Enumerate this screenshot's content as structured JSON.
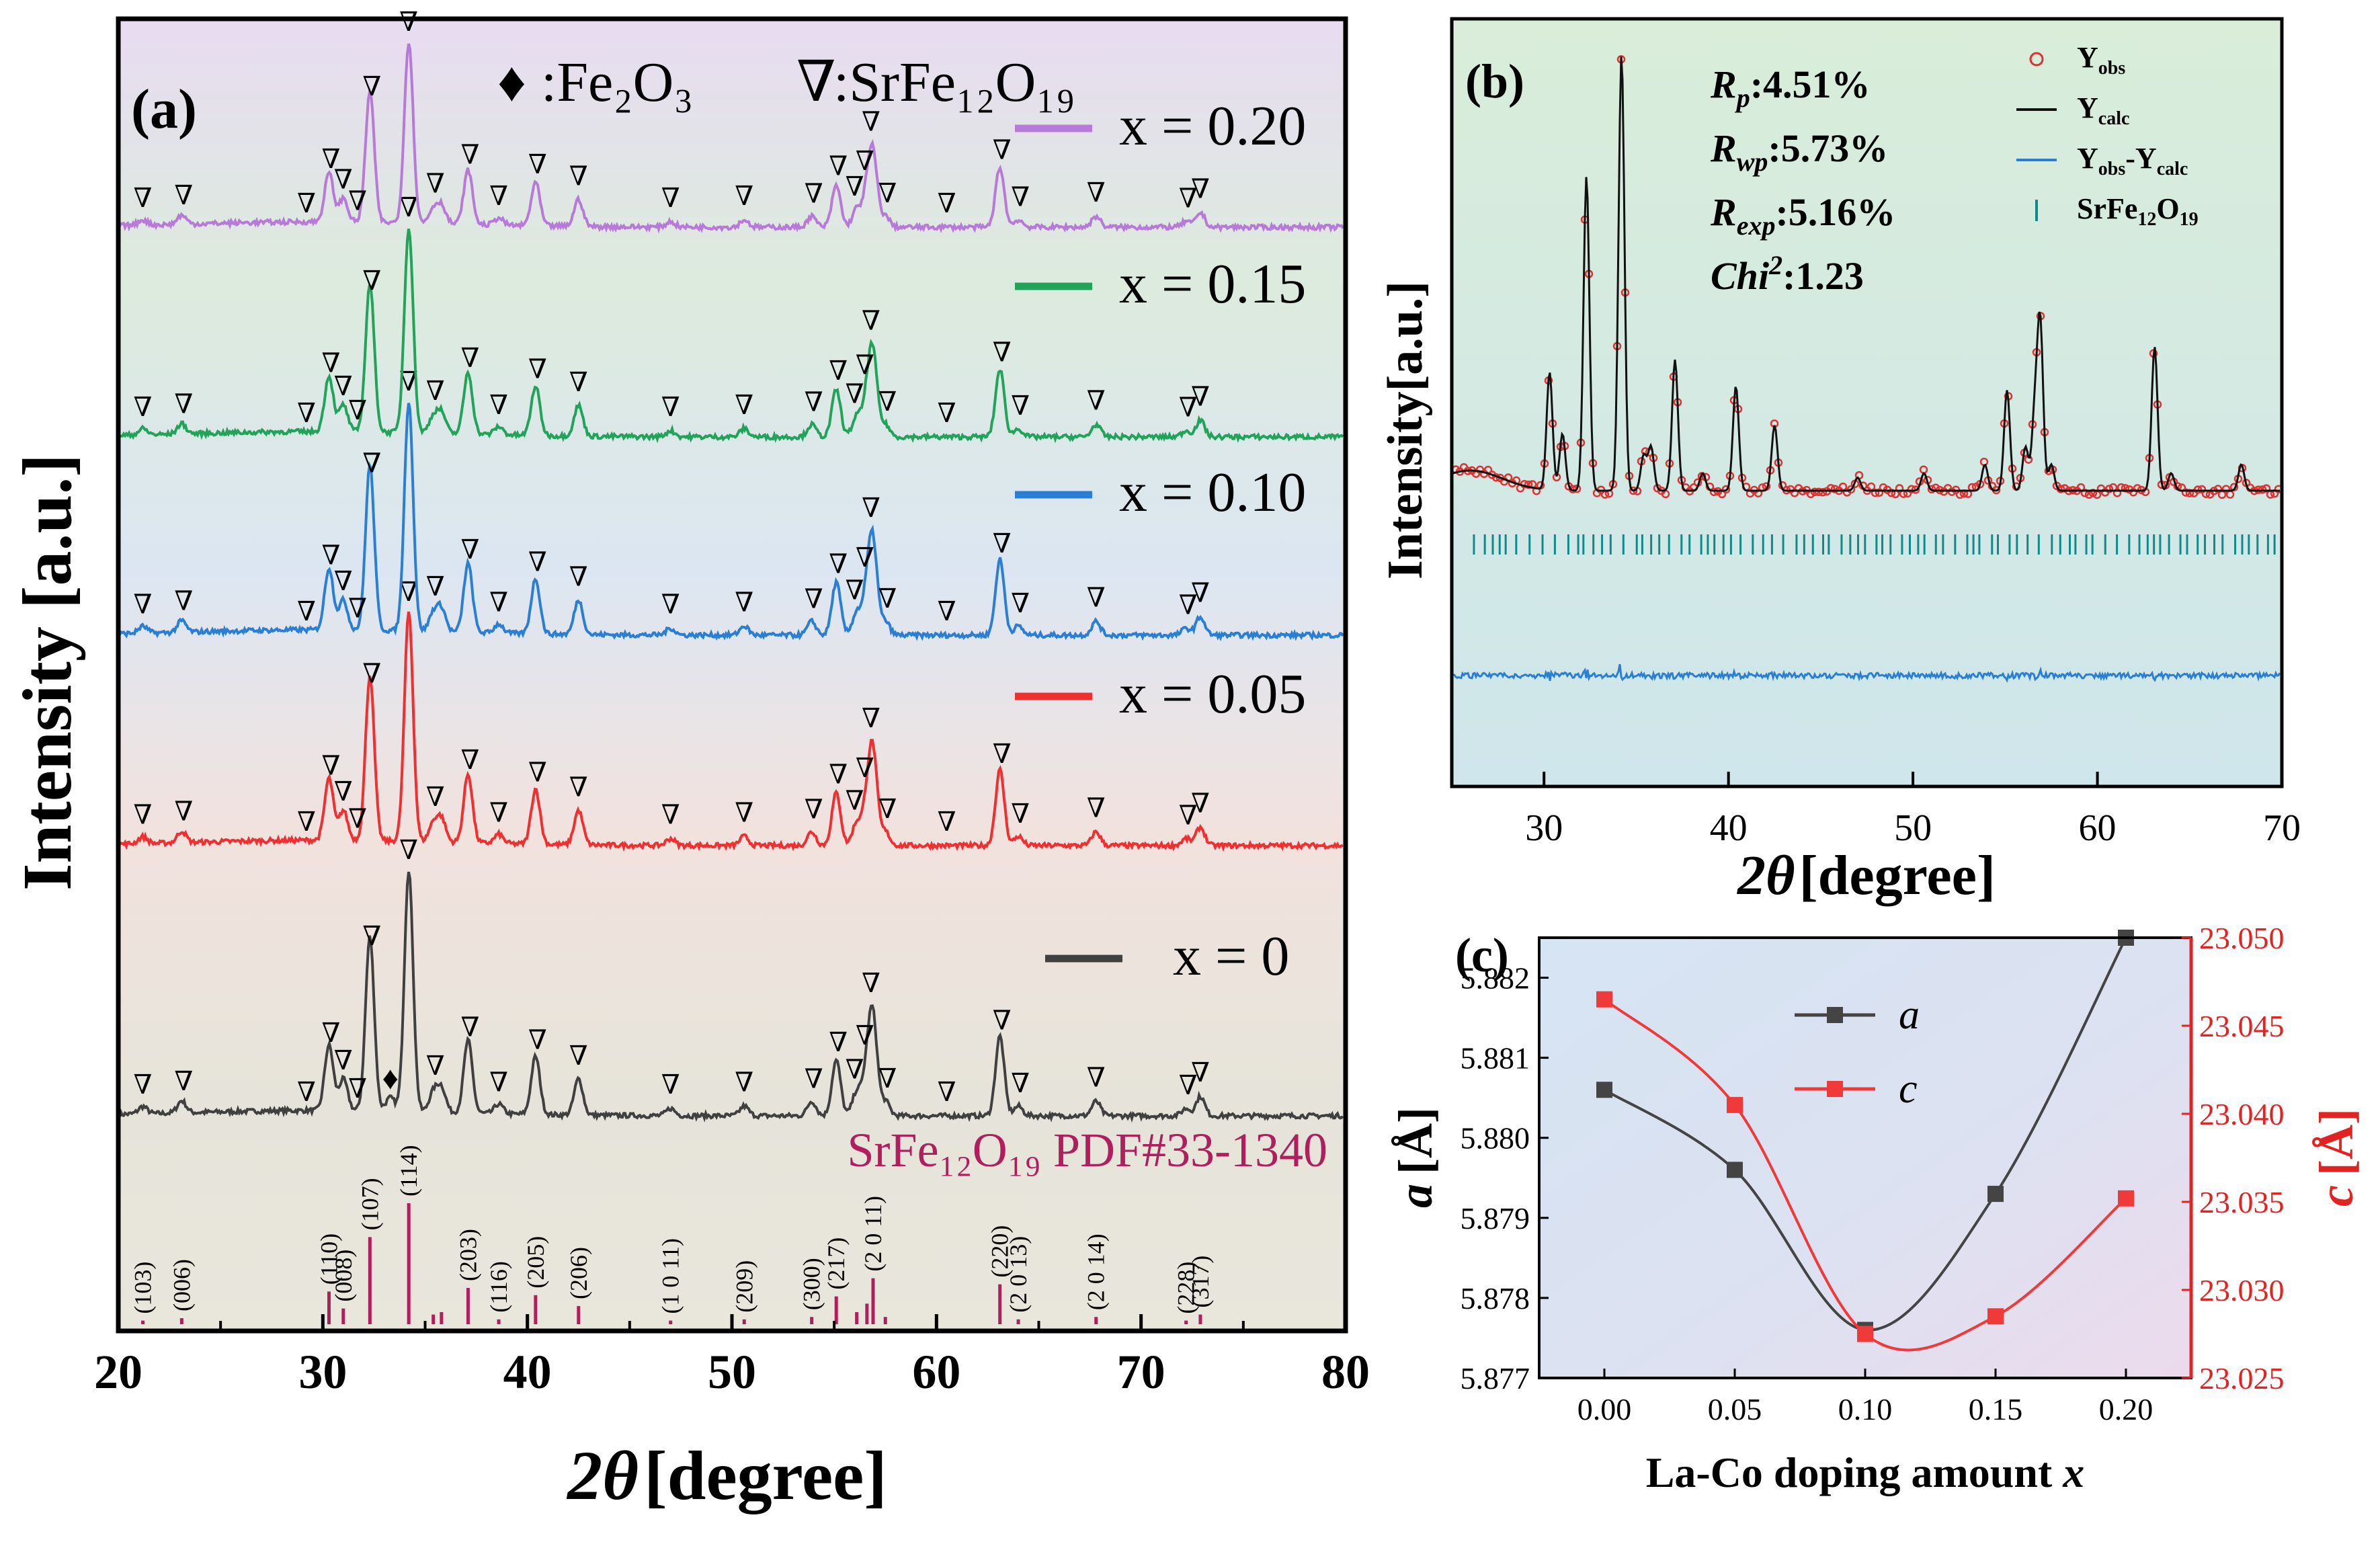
{
  "chart_data": [
    {
      "panel": "(a)",
      "type": "line",
      "xlabel_theta": "2θ",
      "xlabel_rest": "[degree]",
      "ylabel": "Intensity [a.u.]",
      "xlim": [
        20,
        80
      ],
      "x_ticks": [
        "20",
        "30",
        "40",
        "50",
        "60",
        "70",
        "80"
      ],
      "legend_phases": {
        "fe2o3_symbol": "♦",
        "fe2o3_label": ":Fe₂O₃",
        "srfe_symbol": "∇",
        "srfe_label": ":SrFe₁₂O₁₉"
      },
      "peak_positions": [
        21.2,
        23.2,
        29.2,
        30.4,
        31.0,
        31.7,
        32.4,
        34.2,
        35.5,
        37.2,
        38.6,
        40.5,
        42.5,
        47.0,
        50.6,
        54.0,
        55.2,
        56.0,
        56.5,
        56.8,
        57.6,
        60.5,
        63.2,
        64.1,
        67.8,
        72.3,
        72.9
      ],
      "series": [
        {
          "name": "x = 0",
          "color": "#404040",
          "fe2o3_peak": 33.3
        },
        {
          "name": "x = 0.05",
          "color": "#f03030"
        },
        {
          "name": "x = 0.10",
          "color": "#2a7fd4"
        },
        {
          "name": "x = 0.15",
          "color": "#21a35a"
        },
        {
          "name": "x = 0.20",
          "color": "#b77ad8"
        }
      ],
      "reference": {
        "label": "SrFe₁₂O₁₉ PDF#33-1340",
        "color": "#b01e5e",
        "lines": [
          {
            "x": 21.2,
            "h": 0.03,
            "hkl": "(103)"
          },
          {
            "x": 23.1,
            "h": 0.05,
            "hkl": "(006)"
          },
          {
            "x": 30.3,
            "h": 0.27,
            "hkl": "(110)"
          },
          {
            "x": 31.0,
            "h": 0.13,
            "hkl": "(008)"
          },
          {
            "x": 32.3,
            "h": 0.72,
            "hkl": "(107)"
          },
          {
            "x": 34.2,
            "h": 1.0,
            "hkl": "(114)"
          },
          {
            "x": 35.4,
            "h": 0.08,
            "hkl": ""
          },
          {
            "x": 35.8,
            "h": 0.1,
            "hkl": ""
          },
          {
            "x": 37.1,
            "h": 0.3,
            "hkl": "(203)"
          },
          {
            "x": 38.6,
            "h": 0.04,
            "hkl": "(116)"
          },
          {
            "x": 40.4,
            "h": 0.24,
            "hkl": "(205)"
          },
          {
            "x": 42.5,
            "h": 0.15,
            "hkl": "(206)"
          },
          {
            "x": 47.0,
            "h": 0.03,
            "hkl": "(1 0 11)"
          },
          {
            "x": 50.6,
            "h": 0.04,
            "hkl": "(209)"
          },
          {
            "x": 53.9,
            "h": 0.06,
            "hkl": "(300)"
          },
          {
            "x": 55.1,
            "h": 0.23,
            "hkl": "(217)"
          },
          {
            "x": 56.1,
            "h": 0.1,
            "hkl": ""
          },
          {
            "x": 56.6,
            "h": 0.17,
            "hkl": ""
          },
          {
            "x": 56.9,
            "h": 0.38,
            "hkl": "(2 0 11)"
          },
          {
            "x": 57.5,
            "h": 0.06,
            "hkl": ""
          },
          {
            "x": 63.1,
            "h": 0.33,
            "hkl": "(220)"
          },
          {
            "x": 64.0,
            "h": 0.04,
            "hkl": "(2 0 13)"
          },
          {
            "x": 67.8,
            "h": 0.06,
            "hkl": "(2 0 14)"
          },
          {
            "x": 72.2,
            "h": 0.03,
            "hkl": "(228)"
          },
          {
            "x": 72.9,
            "h": 0.08,
            "hkl": "(317)"
          }
        ]
      }
    },
    {
      "panel": "(b)",
      "type": "line",
      "xlabel_theta": "2θ",
      "xlabel_rest": "[degree]",
      "ylabel": "Intensity[a.u.]",
      "xlim": [
        25,
        70
      ],
      "x_ticks": [
        "30",
        "40",
        "50",
        "60",
        "70"
      ],
      "stats": [
        {
          "sym": "R",
          "sub": "p",
          "sup": "",
          "value": ":4.51%"
        },
        {
          "sym": "R",
          "sub": "wp",
          "sup": "",
          "value": ":5.73%"
        },
        {
          "sym": "R",
          "sub": "exp",
          "sup": "",
          "value": ":5.16%"
        },
        {
          "sym": "Chi",
          "sub": "",
          "sup": "2",
          "value": ":1.23"
        }
      ],
      "legend": [
        {
          "main": "Y",
          "sub": "obs",
          "mid": "",
          "sub2": "",
          "color": "#e03030",
          "marker": "circle"
        },
        {
          "main": "Y",
          "sub": "calc",
          "mid": "",
          "sub2": "",
          "color": "#111111",
          "marker": "line"
        },
        {
          "main": "Y",
          "sub": "obs",
          "mid": "-Y",
          "sub2": "calc",
          "color": "#2a7fd4",
          "marker": "line"
        },
        {
          "main": "SrFe",
          "sub": "12",
          "mid": "O",
          "sub2": "19",
          "color": "#0e8a8a",
          "marker": "tick"
        }
      ]
    },
    {
      "panel": "(c)",
      "type": "line",
      "xlabel": "La-Co doping amount",
      "xlabel_var": "x",
      "categories": [
        0.0,
        0.05,
        0.1,
        0.15,
        0.2
      ],
      "x_ticks": [
        "0.00",
        "0.05",
        "0.10",
        "0.15",
        "0.20"
      ],
      "left_axis": {
        "var": "a",
        "unit": "[Å]",
        "ylim": [
          5.877,
          5.8825
        ],
        "ticks": [
          "5.877",
          "5.878",
          "5.879",
          "5.880",
          "5.881",
          "5.882"
        ],
        "color": "#111111"
      },
      "right_axis": {
        "var": "c",
        "unit": "[Å]",
        "ylim": [
          23.025,
          23.05
        ],
        "ticks": [
          "23.025",
          "23.030",
          "23.035",
          "23.040",
          "23.045",
          "23.050"
        ],
        "color": "#e32222"
      },
      "series": [
        {
          "name": "a",
          "axis": "left",
          "color": "#444444",
          "values": [
            5.8806,
            5.8796,
            5.8776,
            5.8793,
            5.8825
          ]
        },
        {
          "name": "c",
          "axis": "right",
          "color": "#f03a3a",
          "values": [
            23.0465,
            23.0405,
            23.0275,
            23.0285,
            23.0352
          ]
        }
      ]
    }
  ]
}
